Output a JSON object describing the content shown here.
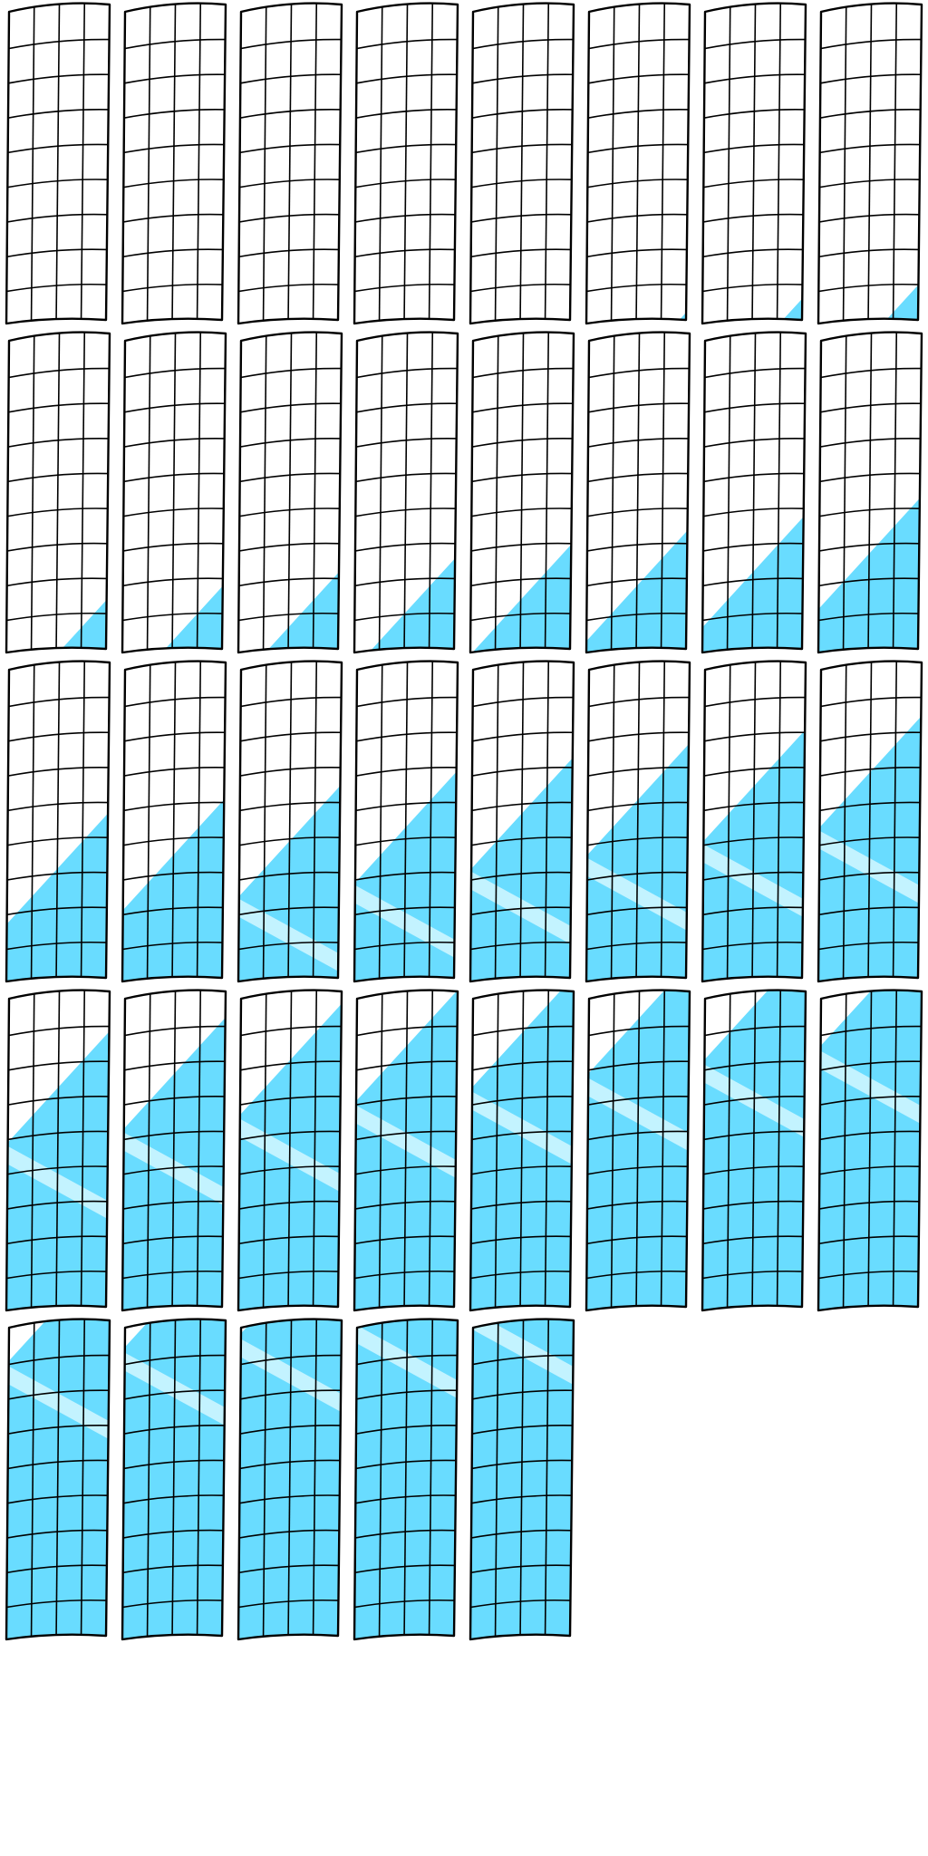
{
  "sheet": {
    "kind": "sprite-sheet",
    "subject": "curved-window-grid-fill-animation",
    "frames_per_row": 8,
    "frame_count": 37,
    "colors": {
      "background": "#ffffff",
      "outline": "#000000",
      "fill": "#69dcff",
      "highlight": "#c3f3ff"
    },
    "grid": {
      "columns": 4,
      "rows": 9
    },
    "frames": [
      {
        "fill": 0.0,
        "highlight": false
      },
      {
        "fill": 0.0,
        "highlight": false
      },
      {
        "fill": 0.0,
        "highlight": false
      },
      {
        "fill": 0.01,
        "highlight": false
      },
      {
        "fill": 0.03,
        "highlight": false
      },
      {
        "fill": 0.06,
        "highlight": false
      },
      {
        "fill": 0.09,
        "highlight": false
      },
      {
        "fill": 0.12,
        "highlight": false
      },
      {
        "fill": 0.15,
        "highlight": false
      },
      {
        "fill": 0.18,
        "highlight": false
      },
      {
        "fill": 0.21,
        "highlight": false
      },
      {
        "fill": 0.24,
        "highlight": false
      },
      {
        "fill": 0.27,
        "highlight": false
      },
      {
        "fill": 0.3,
        "highlight": false
      },
      {
        "fill": 0.33,
        "highlight": false
      },
      {
        "fill": 0.37,
        "highlight": false
      },
      {
        "fill": 0.4,
        "highlight": false
      },
      {
        "fill": 0.43,
        "highlight": false
      },
      {
        "fill": 0.46,
        "highlight": true
      },
      {
        "fill": 0.49,
        "highlight": true
      },
      {
        "fill": 0.52,
        "highlight": true
      },
      {
        "fill": 0.55,
        "highlight": true
      },
      {
        "fill": 0.58,
        "highlight": true
      },
      {
        "fill": 0.61,
        "highlight": true
      },
      {
        "fill": 0.64,
        "highlight": true
      },
      {
        "fill": 0.67,
        "highlight": true
      },
      {
        "fill": 0.7,
        "highlight": true
      },
      {
        "fill": 0.73,
        "highlight": true
      },
      {
        "fill": 0.76,
        "highlight": true
      },
      {
        "fill": 0.79,
        "highlight": true
      },
      {
        "fill": 0.82,
        "highlight": true
      },
      {
        "fill": 0.85,
        "highlight": true
      },
      {
        "fill": 0.88,
        "highlight": true
      },
      {
        "fill": 0.91,
        "highlight": true
      },
      {
        "fill": 0.94,
        "highlight": true
      },
      {
        "fill": 0.97,
        "highlight": true
      },
      {
        "fill": 1.0,
        "highlight": true
      }
    ]
  }
}
